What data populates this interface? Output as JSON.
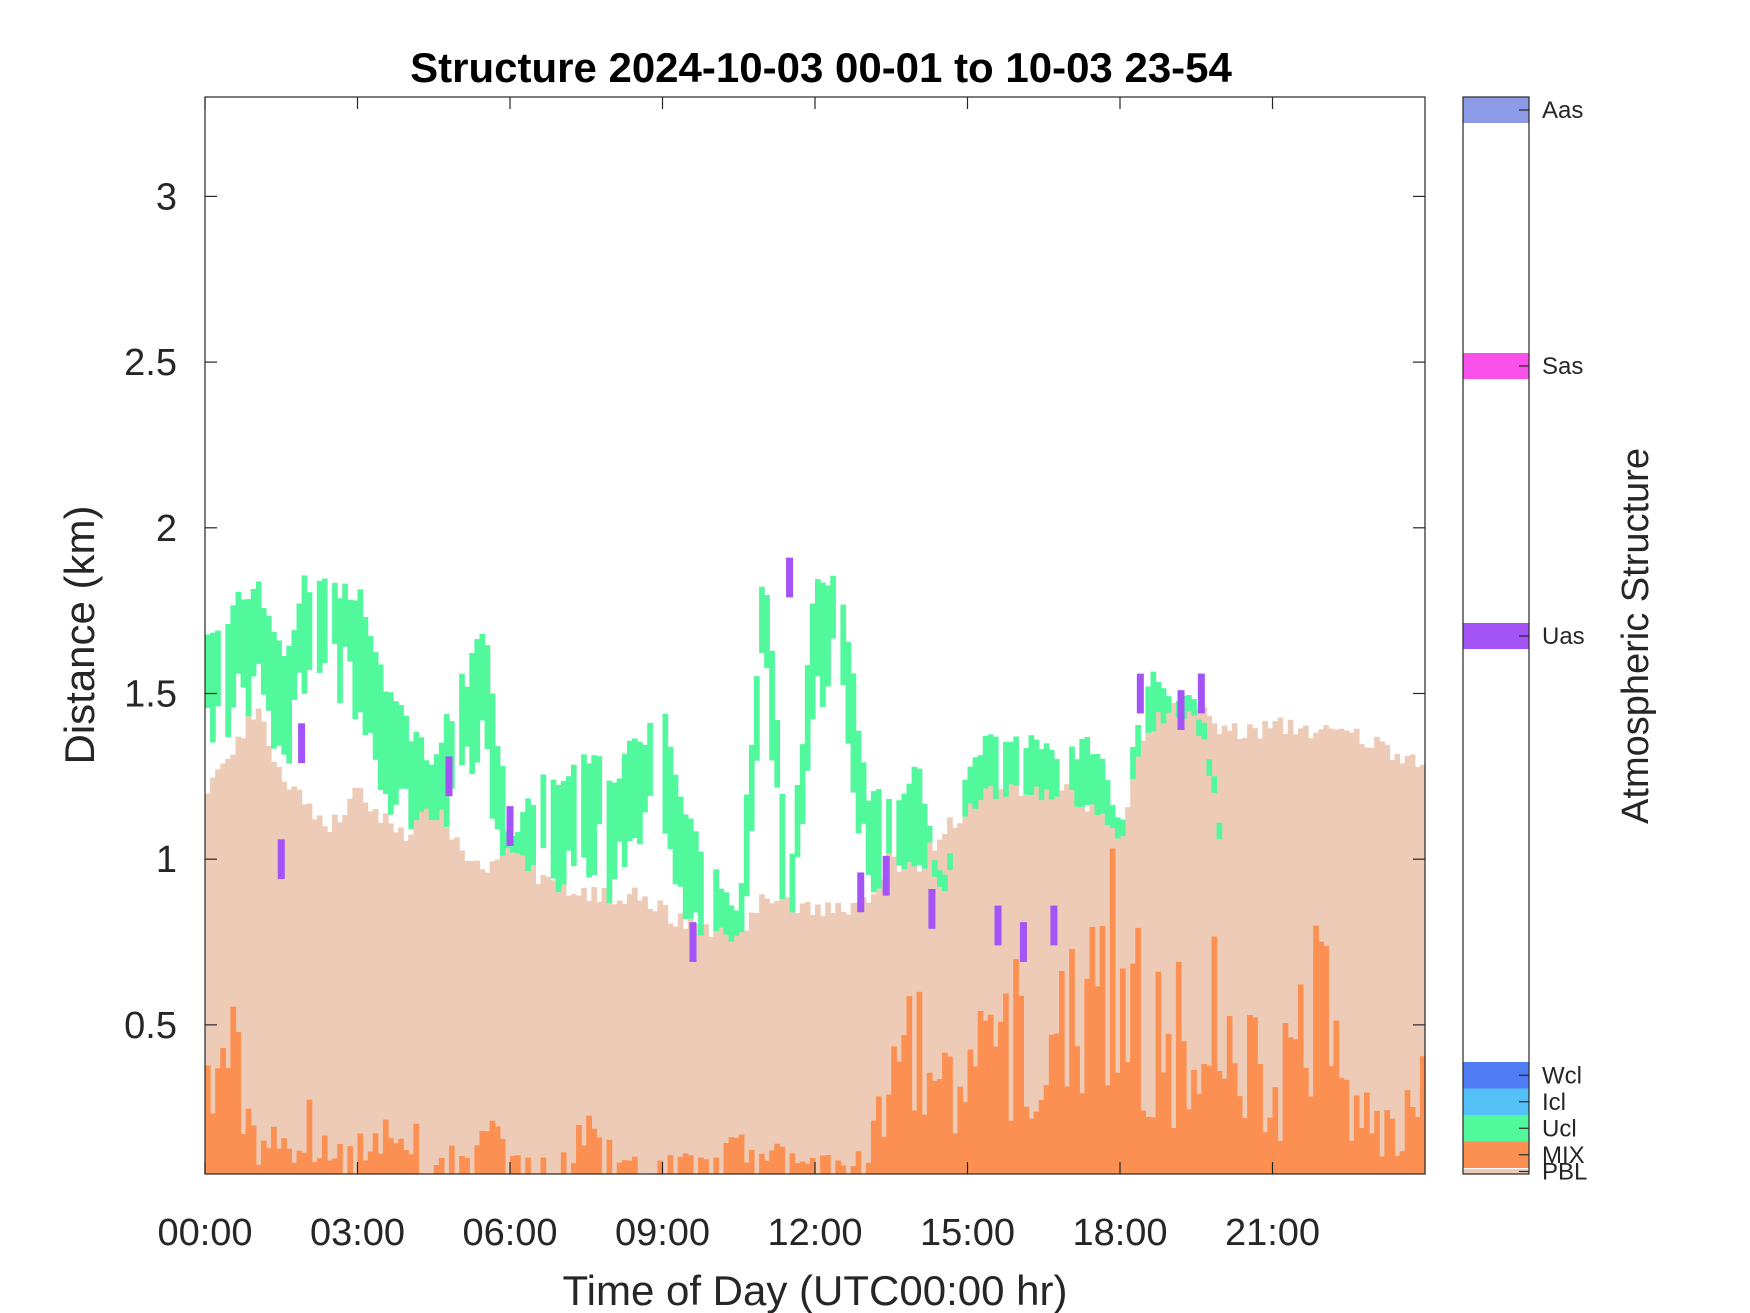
{
  "chart_data": {
    "type": "heatmap",
    "title": "Structure 2024-10-03 00-01 to 10-03 23-54",
    "xlabel": "Time of Day (UTC00:00 hr)",
    "ylabel": "Distance (km)",
    "xlim": [
      0,
      24
    ],
    "ylim": [
      0.05,
      3.3
    ],
    "x_ticks": [
      0,
      3,
      6,
      9,
      12,
      15,
      18,
      21
    ],
    "x_tick_labels": [
      "00:00",
      "03:00",
      "06:00",
      "09:00",
      "12:00",
      "15:00",
      "18:00",
      "21:00"
    ],
    "y_ticks": [
      0.5,
      1,
      1.5,
      2,
      2.5,
      3
    ],
    "y_tick_labels": [
      "0.5",
      "1",
      "1.5",
      "2",
      "2.5",
      "3"
    ],
    "grid": false,
    "colorbar": {
      "label": "Atmospheric Structure",
      "classes": [
        {
          "name": "PBL",
          "color": "#edcbb6"
        },
        {
          "name": "MIX",
          "color": "#fb9052"
        },
        {
          "name": "Ucl",
          "color": "#51f89c"
        },
        {
          "name": "Icl",
          "color": "#53c1f8"
        },
        {
          "name": "Wcl",
          "color": "#4f7cf4"
        },
        {
          "name": "Uas",
          "color": "#a453f7"
        },
        {
          "name": "Sas",
          "color": "#fa51ea"
        },
        {
          "name": "Aas",
          "color": "#8c9ae8"
        }
      ]
    },
    "series": [
      {
        "name": "PBL",
        "x": [
          0,
          0.5,
          1,
          1.5,
          2,
          2.5,
          3,
          3.5,
          4,
          4.5,
          5,
          5.5,
          6,
          6.5,
          7,
          7.5,
          8,
          8.5,
          9,
          9.5,
          10,
          10.5,
          11,
          11.5,
          12,
          12.5,
          13,
          13.5,
          14,
          14.5,
          15,
          15.5,
          16,
          16.5,
          17,
          17.5,
          18,
          18.5,
          19,
          19.5,
          20,
          20.5,
          21,
          21.5,
          22,
          22.5,
          23,
          23.5,
          24
        ],
        "y": [
          1.22,
          1.3,
          1.45,
          1.25,
          1.15,
          1.1,
          1.2,
          1.12,
          1.08,
          1.15,
          1.05,
          0.95,
          1.05,
          0.95,
          0.92,
          0.9,
          0.88,
          0.9,
          0.85,
          0.8,
          0.78,
          0.76,
          0.9,
          0.85,
          0.86,
          0.85,
          0.88,
          1.0,
          0.95,
          1.1,
          1.15,
          1.2,
          1.2,
          1.2,
          1.2,
          1.15,
          1.05,
          1.4,
          1.45,
          1.45,
          1.4,
          1.38,
          1.4,
          1.4,
          1.38,
          1.38,
          1.35,
          1.32,
          1.3
        ]
      },
      {
        "name": "MIX",
        "x": [
          0,
          0.5,
          1,
          1.5,
          2,
          2.5,
          3,
          3.5,
          4,
          4.5,
          5,
          5.5,
          6,
          6.5,
          7,
          7.5,
          8,
          8.5,
          9,
          9.5,
          10,
          10.5,
          11,
          11.5,
          12,
          12.5,
          13,
          13.5,
          14,
          14.5,
          15,
          15.5,
          16,
          16.5,
          17,
          17.5,
          18,
          18.5,
          19,
          19.5,
          20,
          20.5,
          21,
          21.5,
          22,
          22.5,
          23,
          23.5,
          24
        ],
        "y": [
          0.3,
          0.5,
          0.2,
          0.15,
          0.25,
          0.1,
          0.15,
          0.18,
          0.2,
          0.15,
          0.1,
          0.22,
          0.1,
          0.08,
          0.1,
          0.2,
          0.12,
          0.08,
          0.08,
          0.1,
          0.08,
          0.2,
          0.15,
          0.1,
          0.1,
          0.08,
          0.12,
          0.4,
          0.5,
          0.35,
          0.4,
          0.55,
          0.6,
          0.6,
          0.75,
          0.8,
          1.0,
          0.6,
          0.5,
          0.7,
          0.6,
          0.55,
          0.3,
          0.6,
          0.7,
          0.3,
          0.25,
          0.2,
          0.35
        ]
      },
      {
        "name": "Ucl",
        "x": [
          0,
          0.5,
          1,
          1.5,
          2,
          2.5,
          3,
          3.5,
          4,
          4.5,
          5,
          5.5,
          6,
          6.5,
          7,
          7.5,
          8,
          8.5,
          9,
          9.5,
          10,
          10.5,
          11,
          11.5,
          12,
          12.5,
          13,
          13.5,
          14,
          14.5,
          15,
          15.5,
          16,
          16.5,
          17,
          17.5,
          18,
          18.5,
          19,
          19.5,
          20,
          20.5
        ],
        "y": [
          1.65,
          1.75,
          1.85,
          1.6,
          1.85,
          1.8,
          1.82,
          1.55,
          1.4,
          1.3,
          1.5,
          1.7,
          1.05,
          1.22,
          1.22,
          1.3,
          1.25,
          1.35,
          1.45,
          1.1,
          0.95,
          0.85,
          1.9,
          0.92,
          1.85,
          1.85,
          1.2,
          1.15,
          1.3,
          0.9,
          1.3,
          1.35,
          1.35,
          1.35,
          1.3,
          1.35,
          1.1,
          1.55,
          1.5,
          1.5,
          1.1,
          null
        ]
      },
      {
        "name": "Uas",
        "x": [
          1.5,
          1.9,
          4.8,
          6.0,
          9.6,
          11.5,
          12.9,
          13.4,
          14.3,
          15.6,
          16.1,
          16.7,
          18.4,
          19.2,
          19.6
        ],
        "y": [
          1.0,
          1.35,
          1.25,
          1.1,
          0.75,
          1.85,
          0.9,
          0.95,
          0.85,
          0.8,
          0.75,
          0.8,
          1.5,
          1.45,
          1.5
        ]
      }
    ]
  }
}
